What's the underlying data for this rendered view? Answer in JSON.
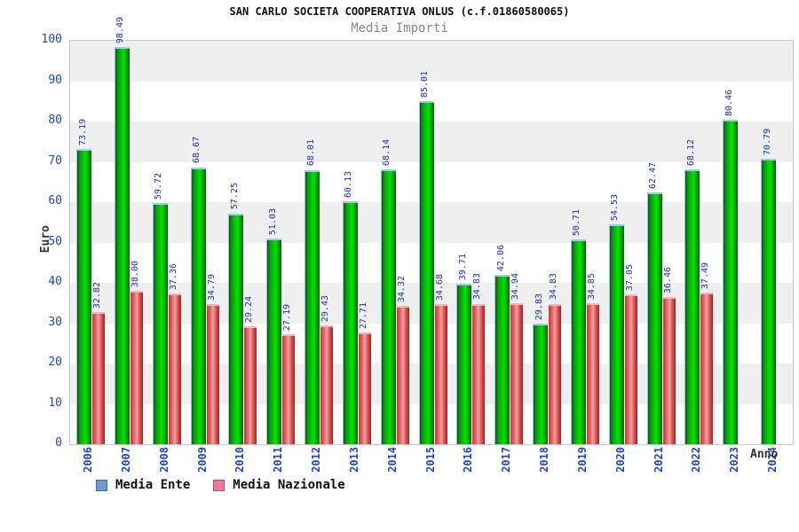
{
  "chart_data": {
    "type": "bar",
    "title": "SAN CARLO SOCIETA COOPERATIVA ONLUS (c.f.01860580065)",
    "subtitle": "Media Importi",
    "xlabel": "Anno",
    "ylabel": "Euro",
    "ylim": [
      0,
      100
    ],
    "ytick_step": 10,
    "grid": "horizontal-bands",
    "band_colors": [
      "#efefef",
      "#ffffff"
    ],
    "legend_position": "bottom-left",
    "categories": [
      "2006",
      "2007",
      "2008",
      "2009",
      "2010",
      "2011",
      "2012",
      "2013",
      "2014",
      "2015",
      "2016",
      "2017",
      "2018",
      "2019",
      "2020",
      "2021",
      "2022",
      "2023",
      "2024"
    ],
    "series": [
      {
        "name": "Media Ente",
        "legend_swatch": "#6b9bd2",
        "legend_swatch_border": "#3c6ea5",
        "bar_color": "#00cf00",
        "values": [
          73.19,
          98.49,
          59.72,
          68.67,
          57.25,
          51.03,
          68.01,
          60.13,
          68.14,
          85.01,
          39.71,
          42.06,
          29.83,
          50.71,
          54.53,
          62.47,
          68.12,
          80.46,
          70.79
        ]
      },
      {
        "name": "Media Nazionale",
        "legend_swatch": "#e87a9f",
        "legend_swatch_border": "#b84a6f",
        "bar_color": "#e06060",
        "values": [
          32.82,
          38.0,
          37.36,
          34.79,
          29.24,
          27.19,
          29.43,
          27.71,
          34.32,
          34.68,
          34.83,
          34.94,
          34.83,
          34.85,
          37.05,
          36.46,
          37.49,
          null,
          null
        ]
      }
    ],
    "value_label_color": "#2233bb",
    "axis_label_color": "#2244cc"
  }
}
